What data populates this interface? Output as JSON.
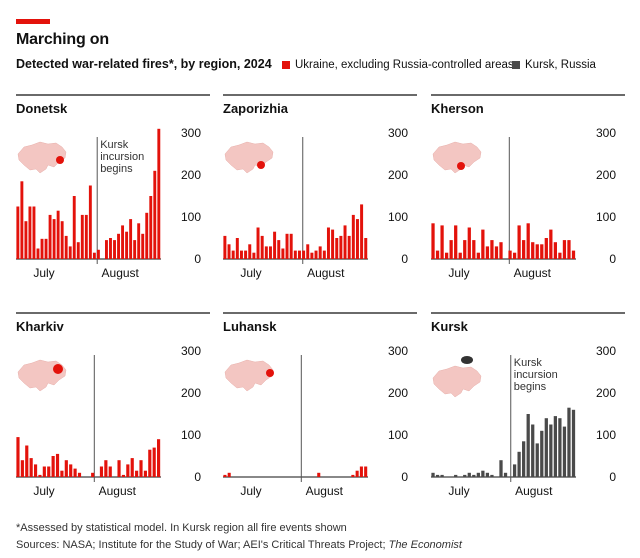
{
  "header": {
    "title": "Marching on",
    "subtitle": "Detected war-related fires*, by region, 2024"
  },
  "legend": [
    {
      "label": "Ukraine, excluding Russia-controlled areas",
      "color": "#e3120b"
    },
    {
      "label": "Kursk, Russia",
      "color": "#4a4a4a"
    }
  ],
  "footnote": "*Assessed by statistical model. In Kursk region all fire events shown",
  "sources": "Sources: NASA; Institute for the Study of War; AEI's Critical Threats Project;",
  "sources_italic": "The Economist",
  "colors": {
    "ukraine": "#e3120b",
    "kursk": "#4a4a4a",
    "map_fill": "#f3c6c2",
    "map_highlight": "#e3120b",
    "axis": "#111111"
  },
  "chart_data": [
    {
      "type": "bar",
      "panel": "Donetsk",
      "series": "Ukraine, excluding Russia-controlled areas",
      "yticks": [
        "300",
        "200",
        "100",
        "0"
      ],
      "ylim": [
        0,
        300
      ],
      "xlabels": [
        "July",
        "August"
      ],
      "annotation": [
        "Kursk",
        "incursion",
        "begins"
      ],
      "values": [
        125,
        185,
        90,
        125,
        125,
        25,
        48,
        48,
        105,
        95,
        115,
        90,
        55,
        30,
        150,
        40,
        105,
        105,
        175,
        15,
        22,
        0,
        45,
        50,
        45,
        60,
        80,
        65,
        95,
        45,
        85,
        60,
        110,
        150,
        210,
        310
      ]
    },
    {
      "type": "bar",
      "panel": "Zaporizhia",
      "series": "Ukraine, excluding Russia-controlled areas",
      "yticks": [
        "300",
        "200",
        "100",
        "0"
      ],
      "ylim": [
        0,
        300
      ],
      "xlabels": [
        "July",
        "August"
      ],
      "values": [
        55,
        35,
        20,
        50,
        20,
        20,
        35,
        15,
        75,
        55,
        30,
        30,
        65,
        45,
        25,
        60,
        60,
        20,
        20,
        20,
        35,
        15,
        20,
        30,
        20,
        75,
        70,
        50,
        55,
        80,
        55,
        105,
        95,
        130,
        50
      ]
    },
    {
      "type": "bar",
      "panel": "Kherson",
      "series": "Ukraine, excluding Russia-controlled areas",
      "yticks": [
        "300",
        "200",
        "100",
        "0"
      ],
      "ylim": [
        0,
        300
      ],
      "xlabels": [
        "July",
        "August"
      ],
      "values": [
        85,
        20,
        80,
        15,
        45,
        80,
        15,
        45,
        75,
        45,
        15,
        70,
        30,
        45,
        30,
        40,
        0,
        20,
        15,
        80,
        45,
        85,
        40,
        35,
        35,
        50,
        70,
        40,
        15,
        45,
        45,
        20
      ]
    },
    {
      "type": "bar",
      "panel": "Kharkiv",
      "series": "Ukraine, excluding Russia-controlled areas",
      "yticks": [
        "300",
        "200",
        "100",
        "0"
      ],
      "ylim": [
        0,
        300
      ],
      "xlabels": [
        "July",
        "August"
      ],
      "values": [
        95,
        40,
        75,
        45,
        30,
        5,
        25,
        25,
        50,
        55,
        15,
        40,
        30,
        20,
        10,
        0,
        0,
        10,
        0,
        25,
        40,
        25,
        0,
        40,
        5,
        30,
        45,
        15,
        40,
        15,
        65,
        70,
        90
      ]
    },
    {
      "type": "bar",
      "panel": "Luhansk",
      "series": "Ukraine, excluding Russia-controlled areas",
      "yticks": [
        "300",
        "200",
        "100",
        "0"
      ],
      "ylim": [
        0,
        300
      ],
      "xlabels": [
        "July",
        "August"
      ],
      "values": [
        5,
        10,
        0,
        0,
        0,
        0,
        0,
        0,
        0,
        0,
        0,
        0,
        0,
        0,
        0,
        0,
        0,
        0,
        0,
        0,
        0,
        0,
        10,
        0,
        0,
        0,
        0,
        0,
        0,
        0,
        5,
        15,
        25,
        25
      ]
    },
    {
      "type": "bar",
      "panel": "Kursk",
      "series": "Kursk, Russia",
      "yticks": [
        "300",
        "200",
        "100",
        "0"
      ],
      "ylim": [
        0,
        300
      ],
      "xlabels": [
        "July",
        "August"
      ],
      "annotation": [
        "Kursk",
        "incursion",
        "begins"
      ],
      "values": [
        10,
        5,
        5,
        0,
        0,
        5,
        0,
        5,
        10,
        5,
        10,
        15,
        10,
        5,
        0,
        40,
        10,
        0,
        30,
        60,
        85,
        150,
        125,
        80,
        110,
        140,
        125,
        145,
        140,
        120,
        165,
        160
      ]
    }
  ]
}
